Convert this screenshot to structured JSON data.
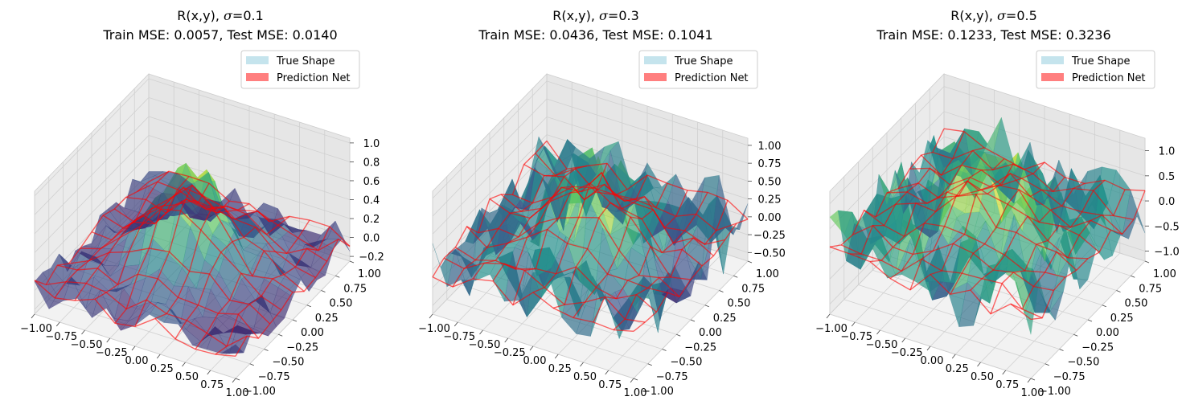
{
  "chart_data": [
    {
      "type": "surface3d",
      "title_line1": "R(x,y), ",
      "sigma_symbol": "σ",
      "sigma_value": "=0.1",
      "title_line2": "Train MSE: 0.0057, Test MSE: 0.0140",
      "legend": [
        "True Shape",
        "Prediction Net"
      ],
      "x_ticks": [
        "−1.00",
        "−0.75",
        "−0.50",
        "−0.25",
        "0.00",
        "0.25",
        "0.50",
        "0.75",
        "1.00"
      ],
      "y_ticks": [
        "−1.00",
        "−0.75",
        "−0.50",
        "−0.25",
        "0.00",
        "0.25",
        "0.50",
        "0.75",
        "1.00"
      ],
      "z_ticks": [
        "−0.2",
        "0.0",
        "0.2",
        "0.4",
        "0.6",
        "0.8",
        "1.0"
      ],
      "z_tick_values": [
        -0.2,
        0.0,
        0.2,
        0.4,
        0.6,
        0.8,
        1.0
      ],
      "zlim": [
        -0.25,
        1.05
      ],
      "noise": 0.1,
      "xlim": [
        -1,
        1
      ],
      "ylim": [
        -1,
        1
      ]
    },
    {
      "type": "surface3d",
      "title_line1": "R(x,y), ",
      "sigma_symbol": "σ",
      "sigma_value": "=0.3",
      "title_line2": "Train MSE: 0.0436, Test MSE: 0.1041",
      "legend": [
        "True Shape",
        "Prediction Net"
      ],
      "x_ticks": [
        "−1.00",
        "−0.75",
        "−0.50",
        "−0.25",
        "0.00",
        "0.25",
        "0.50",
        "0.75",
        "1.00"
      ],
      "y_ticks": [
        "−1.00",
        "−0.75",
        "−0.50",
        "−0.25",
        "0.00",
        "0.25",
        "0.50",
        "0.75",
        "1.00"
      ],
      "z_ticks": [
        "−0.50",
        "−0.25",
        "0.00",
        "0.25",
        "0.50",
        "0.75",
        "1.00"
      ],
      "z_tick_values": [
        -0.5,
        -0.25,
        0.0,
        0.25,
        0.5,
        0.75,
        1.0
      ],
      "zlim": [
        -0.62,
        1.1
      ],
      "noise": 0.3,
      "xlim": [
        -1,
        1
      ],
      "ylim": [
        -1,
        1
      ]
    },
    {
      "type": "surface3d",
      "title_line1": "R(x,y), ",
      "sigma_symbol": "σ",
      "sigma_value": "=0.5",
      "title_line2": "Train MSE: 0.1233, Test MSE: 0.3236",
      "legend": [
        "True Shape",
        "Prediction Net"
      ],
      "x_ticks": [
        "−1.00",
        "−0.75",
        "−0.50",
        "−0.25",
        "0.00",
        "0.25",
        "0.50",
        "0.75",
        "1.00"
      ],
      "y_ticks": [
        "−1.00",
        "−0.75",
        "−0.50",
        "−0.25",
        "0.00",
        "0.25",
        "0.50",
        "0.75",
        "1.00"
      ],
      "z_ticks": [
        "−1.0",
        "−0.5",
        "0.0",
        "0.5",
        "1.0"
      ],
      "z_tick_values": [
        -1.0,
        -0.5,
        0.0,
        0.5,
        1.0
      ],
      "zlim": [
        -1.2,
        1.25
      ],
      "noise": 0.5,
      "xlim": [
        -1,
        1
      ],
      "ylim": [
        -1,
        1
      ]
    }
  ],
  "colors": {
    "true_shape_legend": "#add8e6",
    "prediction_net": "#ff0000",
    "pane": "#f2f2f2",
    "grid": "#d0d0d0",
    "colormap": "viridis"
  }
}
